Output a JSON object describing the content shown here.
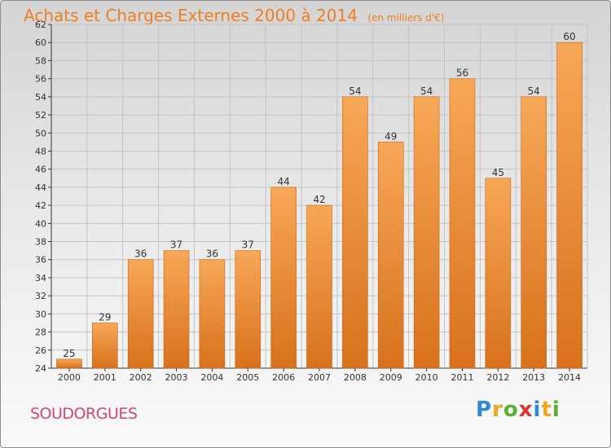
{
  "header": {
    "title": "Achats et Charges Externes 2000 à 2014",
    "unit": "(en milliers d'€)"
  },
  "footer": {
    "location": "SOUDORGUES",
    "brand": "Proxiti"
  },
  "colors": {
    "bar_light": "#f7a857",
    "bar_dark": "#d8711c",
    "title": "#ee7f22",
    "location": "#d9457a"
  },
  "chart_data": {
    "type": "bar",
    "title": "Achats et Charges Externes 2000 à 2014",
    "subtitle": "(en milliers d'€)",
    "categories": [
      "2000",
      "2001",
      "2002",
      "2003",
      "2004",
      "2005",
      "2006",
      "2007",
      "2008",
      "2009",
      "2010",
      "2011",
      "2012",
      "2013",
      "2014"
    ],
    "values": [
      25,
      29,
      36,
      37,
      36,
      37,
      44,
      42,
      54,
      49,
      54,
      56,
      45,
      54,
      60
    ],
    "ylim": [
      24,
      62
    ],
    "yticks": [
      24,
      26,
      28,
      30,
      32,
      34,
      36,
      38,
      40,
      42,
      44,
      46,
      48,
      50,
      52,
      54,
      56,
      58,
      60,
      62
    ],
    "grid": true,
    "legend": "none"
  }
}
